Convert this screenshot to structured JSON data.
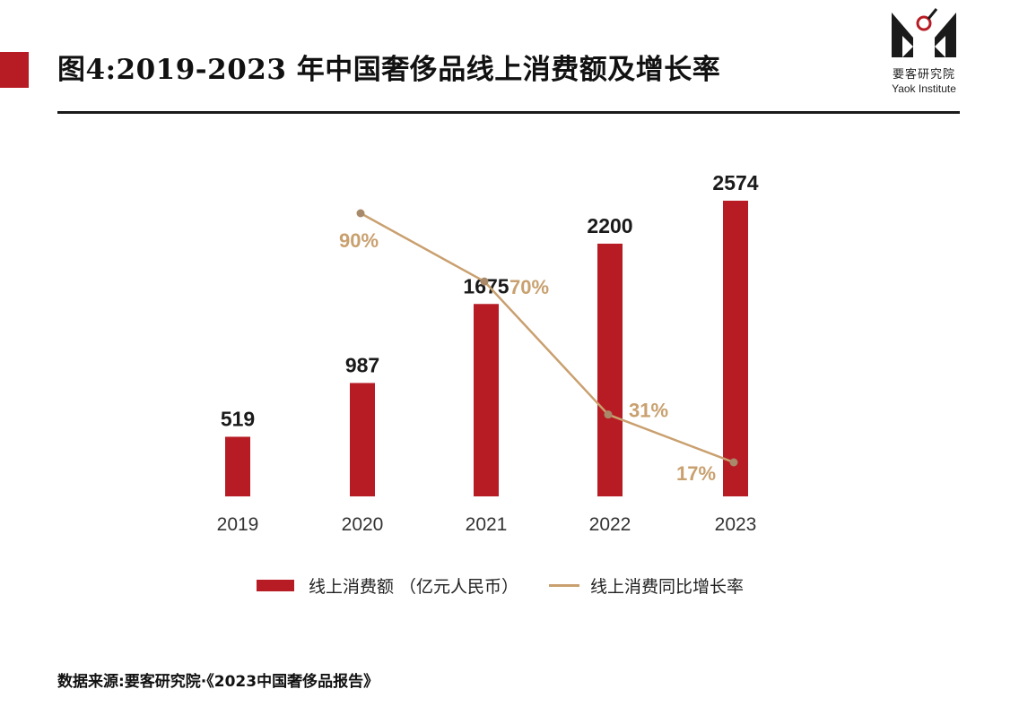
{
  "header": {
    "title": "图4:2019-2023 年中国奢侈品线上消费额及增长率"
  },
  "logo": {
    "name_cn": "要客研究院",
    "name_en": "Yaok Institute"
  },
  "chart_data": {
    "type": "bar",
    "categories": [
      "2019",
      "2020",
      "2021",
      "2022",
      "2023"
    ],
    "series": [
      {
        "name": "线上消费额 （亿元人民币）",
        "type": "bar",
        "values": [
          519,
          987,
          1675,
          2200,
          2574
        ],
        "labels": [
          "519",
          "987",
          "1675",
          "2200",
          "2574"
        ],
        "color": "#b71c24"
      },
      {
        "name": "线上消费同比增长率",
        "type": "line",
        "x": [
          "2020",
          "2021",
          "2022",
          "2023"
        ],
        "values": [
          90,
          70,
          31,
          17
        ],
        "labels": [
          "90%",
          "70%",
          "31%",
          "17%"
        ],
        "color": "#c9a06f"
      }
    ],
    "bar_ylim": [
      0,
      2574
    ],
    "line_ylim": [
      17,
      90
    ],
    "grid": false,
    "legend_position": "bottom"
  },
  "footer": {
    "source": "数据来源:要客研究院·《2023中国奢侈品报告》"
  }
}
